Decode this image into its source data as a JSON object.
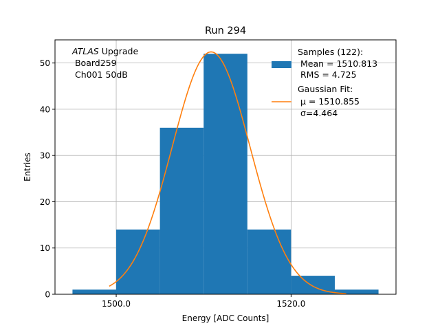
{
  "chart_data": {
    "type": "bar",
    "title": "Run 294",
    "xlabel": "Energy [ADC Counts]",
    "ylabel": "Entries",
    "xlim": [
      1493.0,
      1532.0
    ],
    "ylim": [
      0,
      55
    ],
    "grid": true,
    "x_ticks": [
      1500.0,
      1520.0
    ],
    "x_tick_labels": [
      "1500.0",
      "1520.0"
    ],
    "y_ticks": [
      0,
      10,
      20,
      30,
      40,
      50
    ],
    "y_tick_labels": [
      "0",
      "10",
      "20",
      "30",
      "40",
      "50"
    ],
    "bins": [
      {
        "x0": 1495,
        "x1": 1500,
        "value": 1
      },
      {
        "x0": 1500,
        "x1": 1505,
        "value": 14
      },
      {
        "x0": 1505,
        "x1": 1510,
        "value": 36
      },
      {
        "x0": 1510,
        "x1": 1515,
        "value": 52
      },
      {
        "x0": 1515,
        "x1": 1520,
        "value": 14
      },
      {
        "x0": 1520,
        "x1": 1525,
        "value": 4
      },
      {
        "x0": 1525,
        "x1": 1530,
        "value": 1
      }
    ],
    "fit": {
      "mu": 1510.855,
      "sigma": 4.464,
      "amplitude": 52.4,
      "x_range": [
        1499.2,
        1526.3
      ]
    },
    "annotation": {
      "italic": "ATLAS",
      "rest": " Upgrade",
      "line2": " Board259",
      "line3": " Ch001 50dB"
    },
    "legend": {
      "placement": "top-right",
      "hist_line1": "Samples (122):",
      "hist_line2": " Mean = 1510.813",
      "hist_line3": " RMS = 4.725",
      "fit_line1": "Gaussian Fit:",
      "fit_line2": " μ = 1510.855",
      "fit_line3": " σ=4.464"
    },
    "colors": {
      "bars": "#1f77b4",
      "fit": "#ff7f0e",
      "grid": "#b0b0b0"
    }
  }
}
